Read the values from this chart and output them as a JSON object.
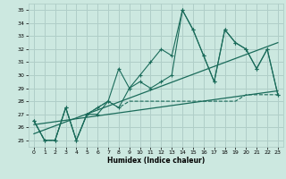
{
  "title": "",
  "xlabel": "Humidex (Indice chaleur)",
  "bg_color": "#cce8e0",
  "grid_color": "#b0cec8",
  "line_color": "#1a6b5a",
  "xlim": [
    -0.5,
    23.5
  ],
  "ylim": [
    24.5,
    35.5
  ],
  "xticks": [
    0,
    1,
    2,
    3,
    4,
    5,
    6,
    7,
    8,
    9,
    10,
    11,
    12,
    13,
    14,
    15,
    16,
    17,
    18,
    19,
    20,
    21,
    22,
    23
  ],
  "yticks": [
    25,
    26,
    27,
    28,
    29,
    30,
    31,
    32,
    33,
    34,
    35
  ],
  "series": {
    "line1": {
      "x": [
        0,
        1,
        2,
        3,
        4,
        5,
        6,
        7,
        8,
        9,
        10,
        11,
        12,
        13,
        14,
        15,
        16,
        17,
        18,
        19,
        20,
        21,
        22,
        23
      ],
      "y": [
        26.5,
        25,
        25,
        27.5,
        25,
        27,
        27,
        28,
        30.5,
        29,
        30,
        31,
        32,
        31.5,
        35,
        33.5,
        31.5,
        29.5,
        33.5,
        32.5,
        32,
        30.5,
        32,
        28.5
      ]
    },
    "line2": {
      "x": [
        0,
        1,
        2,
        3,
        4,
        5,
        6,
        7,
        8,
        9,
        10,
        11,
        12,
        13,
        14,
        15,
        16,
        17,
        18,
        19,
        20,
        21,
        22,
        23
      ],
      "y": [
        26.5,
        25,
        25,
        27.5,
        25,
        27,
        27.5,
        28,
        27.5,
        29,
        29.5,
        29,
        29.5,
        30,
        35,
        33.5,
        31.5,
        29.5,
        33.5,
        32.5,
        32,
        30.5,
        32,
        28.5
      ]
    },
    "line3_flat": {
      "x": [
        0,
        1,
        2,
        3,
        4,
        5,
        6,
        7,
        8,
        9,
        10,
        11,
        12,
        13,
        14,
        15,
        16,
        17,
        18,
        19,
        20,
        21,
        22,
        23
      ],
      "y": [
        26.5,
        25,
        25,
        27.5,
        25,
        27,
        27.5,
        28,
        27.5,
        28,
        28,
        28,
        28,
        28,
        28,
        28,
        28,
        28,
        28,
        28,
        28.5,
        28.5,
        28.5,
        28.5
      ]
    },
    "regression1": {
      "x": [
        0,
        23
      ],
      "y": [
        25.5,
        32.5
      ]
    },
    "regression2": {
      "x": [
        0,
        23
      ],
      "y": [
        26.2,
        28.8
      ]
    }
  }
}
